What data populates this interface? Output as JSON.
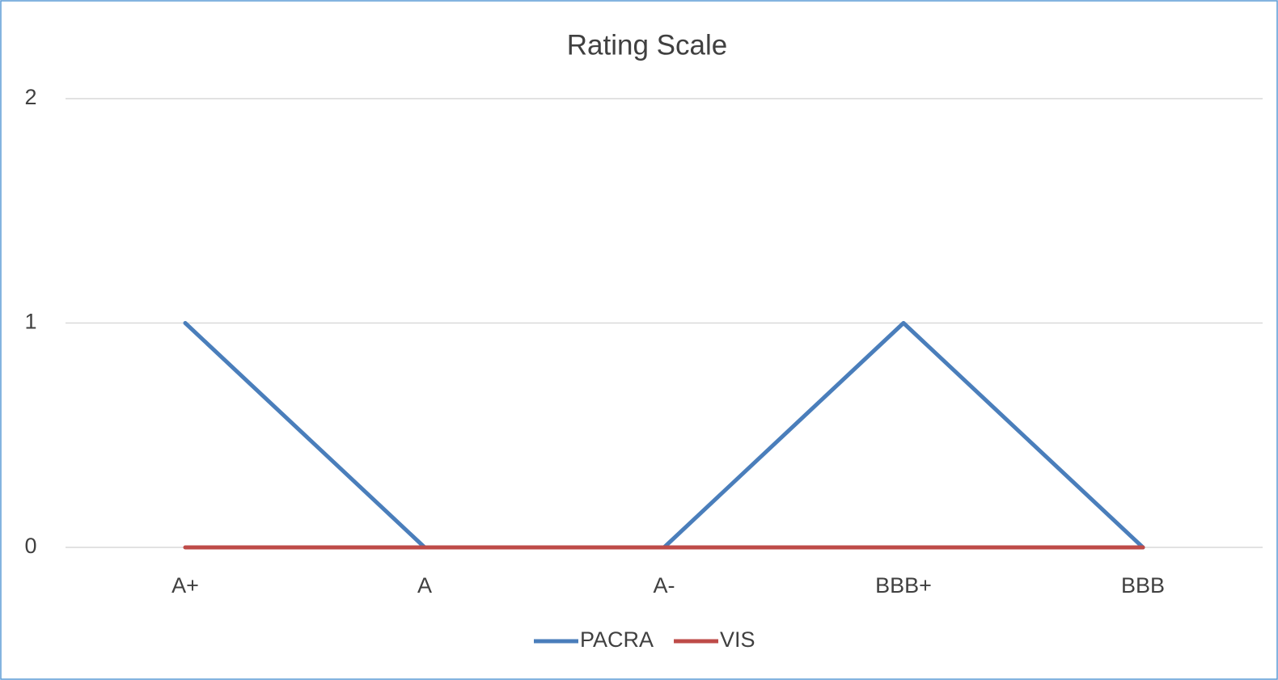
{
  "chart_data": {
    "type": "line",
    "title": "Rating Scale",
    "categories": [
      "A+",
      "A",
      "A-",
      "BBB+",
      "BBB"
    ],
    "series": [
      {
        "name": "PACRA",
        "color": "#4a7ebb",
        "values": [
          1,
          0,
          0,
          1,
          0
        ]
      },
      {
        "name": "VIS",
        "color": "#be4b48",
        "values": [
          0,
          0,
          0,
          0,
          0
        ]
      }
    ],
    "ylim": [
      0,
      2
    ],
    "yticks": [
      0,
      1,
      2
    ],
    "grid": true,
    "legend": "bottom"
  }
}
